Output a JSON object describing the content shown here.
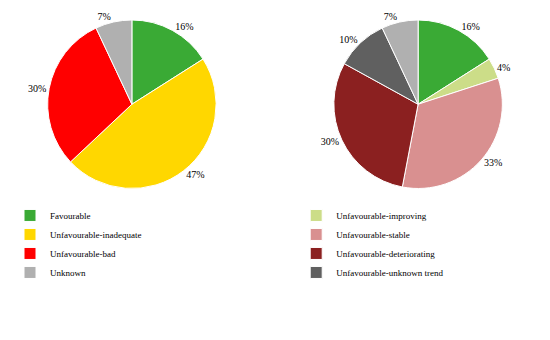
{
  "chart_data": [
    {
      "type": "pie",
      "categories": [
        "Favourable",
        "Unfavourable-inadequate",
        "Unfavourable-bad",
        "Unknown"
      ],
      "values": [
        16,
        47,
        30,
        7
      ],
      "value_labels": [
        "16%",
        "47%",
        "30%",
        "7%"
      ],
      "colors": [
        "#3aaa35",
        "#ffd700",
        "#ff0000",
        "#b0b0b0"
      ],
      "legend": "bottom"
    },
    {
      "type": "pie",
      "categories": [
        "Favourable",
        "Unfavourable-improving",
        "Unfavourable-stable",
        "Unfavourable-deteriorating",
        "Unfavourable-unknown trend",
        "Unknown"
      ],
      "values": [
        16,
        4,
        33,
        30,
        10,
        7
      ],
      "value_labels": [
        "16%",
        "4%",
        "33%",
        "30%",
        "10%",
        "7%"
      ],
      "colors": [
        "#3aaa35",
        "#ccdd88",
        "#d99090",
        "#8b2020",
        "#606060",
        "#b0b0b0"
      ],
      "legend": "bottom"
    }
  ]
}
